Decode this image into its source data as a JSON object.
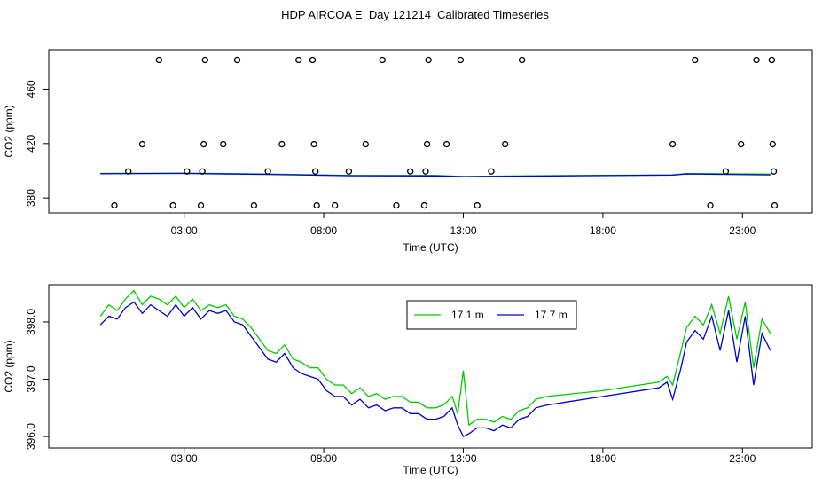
{
  "title": "HDP AIRCOA E  Day 121214  Calibrated Timeseries",
  "chart_data": [
    {
      "type": "line",
      "ylabel": "CO2 (ppm)",
      "xlabel": "Time (UTC)",
      "x_unit": "hours UTC",
      "xlim": [
        -1.85,
        25.5
      ],
      "ylim": [
        369,
        489
      ],
      "x_ticks": [
        {
          "value": 3,
          "label": "03:00"
        },
        {
          "value": 8,
          "label": "08:00"
        },
        {
          "value": 13,
          "label": "13:00"
        },
        {
          "value": 18,
          "label": "18:00"
        },
        {
          "value": 23,
          "label": "23:00"
        }
      ],
      "y_ticks": [
        {
          "value": 380,
          "label": "380"
        },
        {
          "value": 420,
          "label": "420"
        },
        {
          "value": 460,
          "label": "460"
        }
      ],
      "series": [
        {
          "name": "17.1 m",
          "color": "#00cc00",
          "x": [
            0,
            3,
            6,
            9,
            12,
            13,
            15,
            20.5,
            21,
            24
          ],
          "y": [
            398,
            398.2,
            397.6,
            396.5,
            396.5,
            395.8,
            396.2,
            397,
            398,
            397.5
          ]
        },
        {
          "name": "17.7 m",
          "color": "#0000cc",
          "x": [
            0,
            3,
            6,
            9,
            12,
            13,
            15,
            20.5,
            21,
            24
          ],
          "y": [
            397.8,
            398,
            397.3,
            396.3,
            396.2,
            395.6,
            396,
            396.8,
            397.6,
            397
          ]
        }
      ],
      "scatter": {
        "name": "calibration standards",
        "points": [
          [
            0.5,
            374.5
          ],
          [
            1.0,
            399.5
          ],
          [
            1.5,
            419.5
          ],
          [
            2.1,
            481.5
          ],
          [
            2.6,
            374.5
          ],
          [
            3.1,
            399.5
          ],
          [
            3.6,
            374.5
          ],
          [
            3.65,
            399.5
          ],
          [
            3.7,
            419.5
          ],
          [
            3.75,
            481.5
          ],
          [
            4.4,
            419.5
          ],
          [
            4.9,
            481.5
          ],
          [
            5.5,
            374.5
          ],
          [
            6.0,
            399.5
          ],
          [
            6.5,
            419.5
          ],
          [
            7.1,
            481.5
          ],
          [
            7.6,
            481.5
          ],
          [
            7.65,
            419.5
          ],
          [
            7.7,
            399.5
          ],
          [
            7.75,
            374.5
          ],
          [
            8.4,
            374.5
          ],
          [
            8.9,
            399.5
          ],
          [
            9.5,
            419.5
          ],
          [
            10.1,
            481.5
          ],
          [
            10.6,
            374.5
          ],
          [
            11.1,
            399.5
          ],
          [
            11.6,
            374.5
          ],
          [
            11.65,
            399.5
          ],
          [
            11.7,
            419.5
          ],
          [
            11.75,
            481.5
          ],
          [
            12.4,
            419.5
          ],
          [
            12.9,
            481.5
          ],
          [
            13.5,
            374.5
          ],
          [
            14.0,
            399.5
          ],
          [
            14.5,
            419.5
          ],
          [
            15.1,
            481.5
          ],
          [
            20.5,
            419.5
          ],
          [
            21.3,
            481.5
          ],
          [
            21.85,
            374.5
          ],
          [
            22.4,
            399.5
          ],
          [
            22.95,
            419.5
          ],
          [
            23.5,
            481.5
          ],
          [
            24.05,
            481.5
          ],
          [
            24.08,
            419.5
          ],
          [
            24.12,
            399.5
          ],
          [
            24.15,
            374.5
          ]
        ]
      }
    },
    {
      "type": "line",
      "ylabel": "CO2 (ppm)",
      "xlabel": "Time (UTC)",
      "x_unit": "hours UTC",
      "xlim": [
        -1.85,
        25.5
      ],
      "ylim": [
        395.8,
        398.65
      ],
      "x_ticks": [
        {
          "value": 3,
          "label": "03:00"
        },
        {
          "value": 8,
          "label": "08:00"
        },
        {
          "value": 13,
          "label": "13:00"
        },
        {
          "value": 18,
          "label": "18:00"
        },
        {
          "value": 23,
          "label": "23:00"
        }
      ],
      "y_ticks": [
        {
          "value": 396.0,
          "label": "396.0"
        },
        {
          "value": 397.0,
          "label": "397.0"
        },
        {
          "value": 398.0,
          "label": "398.0"
        }
      ],
      "legend": {
        "position": "top-center",
        "entries": [
          "17.1 m",
          "17.7 m"
        ]
      },
      "series": [
        {
          "name": "17.1 m",
          "color": "#00cc00",
          "x": [
            0,
            0.3,
            0.6,
            0.9,
            1.2,
            1.5,
            1.8,
            2.1,
            2.4,
            2.7,
            3.0,
            3.3,
            3.6,
            3.9,
            4.2,
            4.5,
            4.8,
            5.1,
            5.4,
            5.7,
            6.0,
            6.3,
            6.6,
            6.9,
            7.2,
            7.5,
            7.8,
            8.1,
            8.4,
            8.7,
            9.0,
            9.3,
            9.6,
            9.9,
            10.2,
            10.5,
            10.8,
            11.1,
            11.4,
            11.7,
            12.0,
            12.3,
            12.6,
            12.8,
            13.0,
            13.2,
            13.5,
            13.8,
            14.1,
            14.4,
            14.7,
            15.0,
            15.3,
            15.6,
            16.0,
            18.0,
            20.0,
            20.3,
            20.5,
            20.8,
            21.0,
            21.3,
            21.6,
            21.9,
            22.2,
            22.5,
            22.8,
            23.1,
            23.4,
            23.7,
            24.0
          ],
          "y": [
            398.1,
            398.3,
            398.2,
            398.4,
            398.55,
            398.3,
            398.45,
            398.4,
            398.3,
            398.45,
            398.25,
            398.4,
            398.2,
            398.3,
            398.25,
            398.3,
            398.1,
            398.05,
            397.9,
            397.7,
            397.5,
            397.45,
            397.6,
            397.35,
            397.3,
            397.2,
            397.2,
            397.0,
            396.9,
            396.9,
            396.75,
            396.85,
            396.7,
            396.75,
            396.65,
            396.7,
            396.7,
            396.6,
            396.6,
            396.5,
            396.5,
            396.55,
            396.7,
            396.4,
            397.15,
            396.2,
            396.3,
            396.3,
            396.25,
            396.35,
            396.3,
            396.45,
            396.5,
            396.65,
            396.7,
            396.8,
            396.95,
            397.05,
            396.9,
            397.5,
            397.9,
            398.1,
            397.95,
            398.3,
            397.8,
            398.45,
            397.7,
            398.35,
            397.2,
            398.05,
            397.8
          ]
        },
        {
          "name": "17.7 m",
          "color": "#0000cc",
          "x": [
            0,
            0.3,
            0.6,
            0.9,
            1.2,
            1.5,
            1.8,
            2.1,
            2.4,
            2.7,
            3.0,
            3.3,
            3.6,
            3.9,
            4.2,
            4.5,
            4.8,
            5.1,
            5.4,
            5.7,
            6.0,
            6.3,
            6.6,
            6.9,
            7.2,
            7.5,
            7.8,
            8.1,
            8.4,
            8.7,
            9.0,
            9.3,
            9.6,
            9.9,
            10.2,
            10.5,
            10.8,
            11.1,
            11.4,
            11.7,
            12.0,
            12.3,
            12.6,
            12.8,
            13.0,
            13.2,
            13.5,
            13.8,
            14.1,
            14.4,
            14.7,
            15.0,
            15.3,
            15.6,
            16.0,
            18.0,
            20.0,
            20.3,
            20.5,
            20.8,
            21.0,
            21.3,
            21.6,
            21.9,
            22.2,
            22.5,
            22.8,
            23.1,
            23.4,
            23.7,
            24.0
          ],
          "y": [
            397.95,
            398.1,
            398.05,
            398.25,
            398.35,
            398.15,
            398.3,
            398.2,
            398.1,
            398.3,
            398.1,
            398.25,
            398.05,
            398.2,
            398.15,
            398.2,
            398.0,
            397.95,
            397.75,
            397.55,
            397.35,
            397.3,
            397.45,
            397.2,
            397.1,
            397.05,
            397.0,
            396.8,
            396.7,
            396.7,
            396.55,
            396.65,
            396.5,
            396.55,
            396.45,
            396.5,
            396.5,
            396.4,
            396.4,
            396.3,
            396.3,
            396.35,
            396.5,
            396.2,
            396.0,
            396.05,
            396.15,
            396.15,
            396.1,
            396.2,
            396.15,
            396.3,
            396.35,
            396.5,
            396.55,
            396.7,
            396.85,
            396.95,
            396.65,
            397.2,
            397.65,
            397.85,
            397.7,
            398.1,
            397.5,
            398.2,
            397.3,
            398.1,
            396.9,
            397.8,
            397.5
          ]
        }
      ]
    }
  ]
}
